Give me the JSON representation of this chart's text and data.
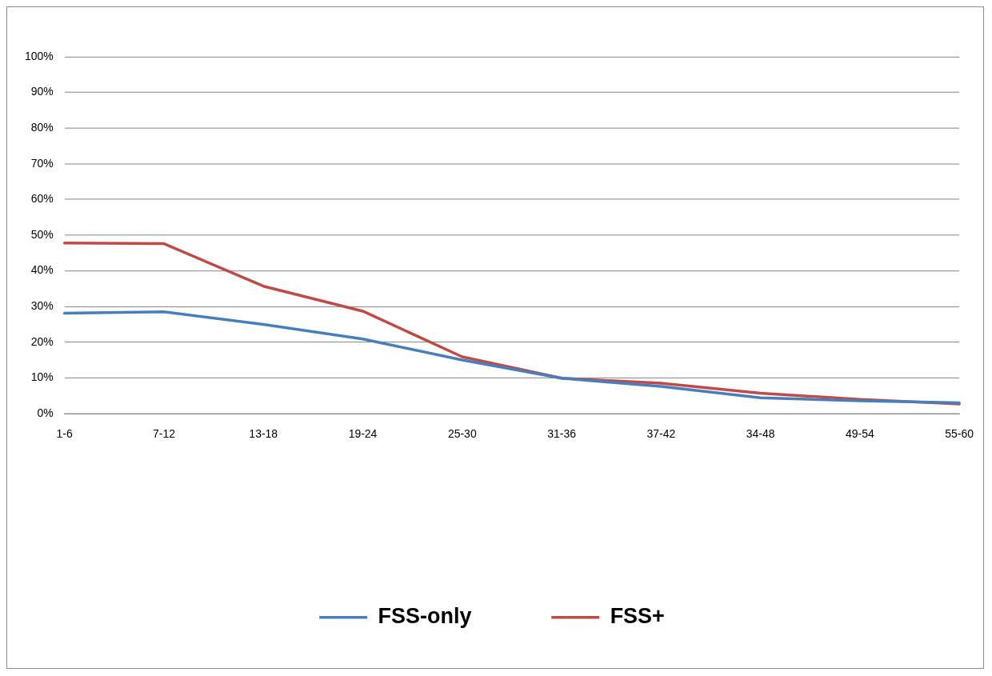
{
  "chart_data": {
    "type": "line",
    "categories": [
      "1-6",
      "7-12",
      "13-18",
      "19-24",
      "25-30",
      "31-36",
      "37-42",
      "34-48",
      "49-54",
      "55-60"
    ],
    "series": [
      {
        "name": "FSS-only",
        "color": "#4a7ebb",
        "values": [
          28.1,
          28.5,
          25.0,
          20.9,
          15.0,
          9.9,
          7.6,
          4.4,
          3.6,
          3.0
        ]
      },
      {
        "name": "FSS+",
        "color": "#be4b48",
        "values": [
          47.8,
          47.6,
          35.7,
          28.7,
          15.9,
          9.9,
          8.5,
          5.7,
          4.0,
          2.7
        ]
      }
    ],
    "ylim": [
      0,
      100
    ],
    "yticks": [
      {
        "value": 0,
        "label": "0%"
      },
      {
        "value": 10,
        "label": "10%"
      },
      {
        "value": 20,
        "label": "20%"
      },
      {
        "value": 30,
        "label": "30%"
      },
      {
        "value": 40,
        "label": "40%"
      },
      {
        "value": 50,
        "label": "50%"
      },
      {
        "value": 60,
        "label": "60%"
      },
      {
        "value": 70,
        "label": "70%"
      },
      {
        "value": 80,
        "label": "80%"
      },
      {
        "value": 90,
        "label": "90%"
      },
      {
        "value": 100,
        "label": "100%"
      }
    ],
    "grid": "y",
    "legend": "bottom",
    "marker": "none",
    "line_style": "solid"
  }
}
